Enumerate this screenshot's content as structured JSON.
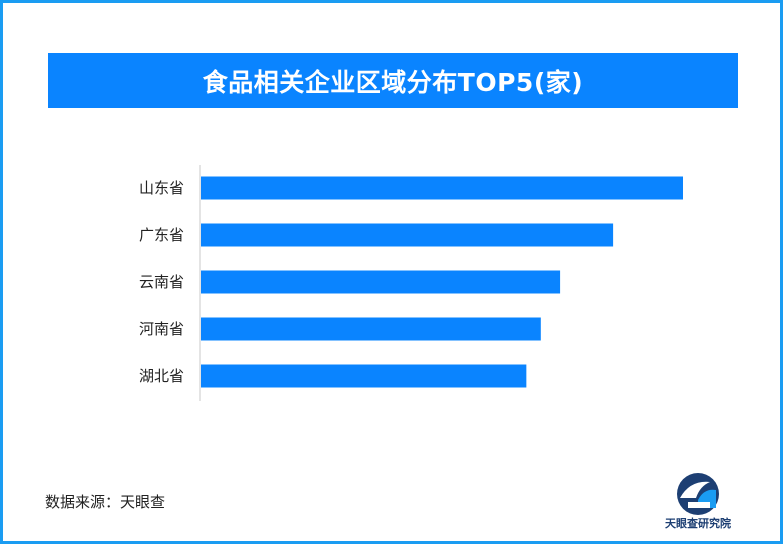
{
  "chart_data": {
    "type": "bar",
    "orientation": "horizontal",
    "title": "食品相关企业区域分布TOP5(家)",
    "categories": [
      "山东省",
      "广东省",
      "云南省",
      "河南省",
      "湖北省"
    ],
    "values": [
      100,
      85.5,
      74.5,
      70.5,
      67.5
    ],
    "xlim": [
      0,
      100
    ],
    "grid": false,
    "bar_color": "#0a84ff"
  },
  "footer": {
    "source_text": "数据来源：天眼查"
  },
  "brand": {
    "name": "天眼查研究院",
    "icon": "tianyancha-logo-icon",
    "colors": {
      "primary": "#1d3f73",
      "accent": "#1a9cf2"
    }
  },
  "colors": {
    "frame_border": "#1a9cf2",
    "title_bg": "#0a84ff",
    "axis_line": "#c8c8c8"
  }
}
